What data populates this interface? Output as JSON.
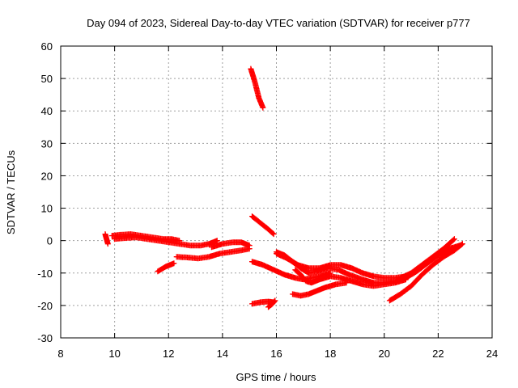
{
  "chart_data": {
    "type": "scatter",
    "title": "Day 094 of 2023, Sidereal Day-to-day VTEC variation (SDTVAR) for receiver p777",
    "xlabel": "GPS time / hours",
    "ylabel": "SDTVAR / TECUs",
    "xlim": [
      8,
      24
    ],
    "ylim": [
      -30,
      60
    ],
    "xticks": [
      8,
      10,
      12,
      14,
      16,
      18,
      20,
      22,
      24
    ],
    "yticks": [
      -30,
      -20,
      -10,
      0,
      10,
      20,
      30,
      40,
      50,
      60
    ],
    "grid": true,
    "legend": "none",
    "marker": "plus",
    "color": "#ff0000",
    "tracks": [
      [
        [
          9.65,
          2.0
        ],
        [
          9.7,
          0.5
        ],
        [
          9.75,
          -1.0
        ]
      ],
      [
        [
          9.9,
          1.5
        ],
        [
          10.2,
          1.8
        ],
        [
          10.6,
          2.0
        ],
        [
          11.0,
          1.5
        ],
        [
          11.4,
          1.0
        ],
        [
          11.8,
          0.5
        ],
        [
          12.1,
          0.5
        ],
        [
          12.4,
          0.0
        ]
      ],
      [
        [
          10.0,
          0.5
        ],
        [
          10.4,
          0.8
        ],
        [
          10.8,
          1.0
        ],
        [
          11.2,
          0.5
        ],
        [
          11.6,
          0.0
        ],
        [
          12.0,
          -0.5
        ],
        [
          12.4,
          -1.0
        ],
        [
          12.8,
          -1.5
        ],
        [
          13.2,
          -1.5
        ],
        [
          13.5,
          -1.0
        ],
        [
          13.8,
          0.0
        ]
      ],
      [
        [
          11.6,
          -9.5
        ],
        [
          11.9,
          -8.0
        ],
        [
          12.2,
          -7.0
        ]
      ],
      [
        [
          12.3,
          -5.0
        ],
        [
          12.7,
          -5.2
        ],
        [
          13.1,
          -5.5
        ],
        [
          13.5,
          -5.0
        ],
        [
          13.9,
          -4.0
        ],
        [
          14.3,
          -3.5
        ],
        [
          14.7,
          -3.0
        ],
        [
          15.0,
          -2.5
        ]
      ],
      [
        [
          13.6,
          -2.0
        ],
        [
          14.0,
          -1.0
        ],
        [
          14.4,
          -0.5
        ],
        [
          14.7,
          -0.5
        ],
        [
          15.0,
          -1.5
        ]
      ],
      [
        [
          15.05,
          53.0
        ],
        [
          15.2,
          49.0
        ],
        [
          15.35,
          44.0
        ],
        [
          15.5,
          41.0
        ]
      ],
      [
        [
          15.1,
          7.5
        ],
        [
          15.4,
          5.5
        ],
        [
          15.7,
          3.5
        ],
        [
          15.9,
          2.0
        ]
      ],
      [
        [
          15.1,
          -19.5
        ],
        [
          15.4,
          -19.0
        ],
        [
          15.7,
          -18.8
        ],
        [
          15.9,
          -19.0
        ]
      ],
      [
        [
          15.7,
          -20.5
        ],
        [
          15.85,
          -19.5
        ],
        [
          15.95,
          -18.5
        ]
      ],
      [
        [
          15.1,
          -6.5
        ],
        [
          15.5,
          -7.5
        ],
        [
          15.9,
          -9.0
        ],
        [
          16.3,
          -10.5
        ],
        [
          16.7,
          -11.5
        ],
        [
          17.0,
          -12.0
        ],
        [
          17.3,
          -11.5
        ],
        [
          17.6,
          -11.0
        ],
        [
          18.0,
          -10.0
        ]
      ],
      [
        [
          16.0,
          -4.0
        ],
        [
          16.4,
          -5.5
        ],
        [
          16.8,
          -7.5
        ],
        [
          17.2,
          -8.5
        ],
        [
          17.6,
          -8.5
        ],
        [
          18.0,
          -7.5
        ],
        [
          18.4,
          -7.5
        ],
        [
          18.8,
          -8.5
        ],
        [
          19.2,
          -10.0
        ],
        [
          19.6,
          -11.0
        ],
        [
          20.0,
          -11.5
        ],
        [
          20.4,
          -11.5
        ],
        [
          20.8,
          -11.0
        ]
      ],
      [
        [
          16.0,
          -3.5
        ],
        [
          16.3,
          -4.5
        ],
        [
          16.6,
          -6.5
        ],
        [
          16.9,
          -8.5
        ],
        [
          17.2,
          -10.0
        ],
        [
          17.5,
          -9.5
        ],
        [
          17.9,
          -8.5
        ],
        [
          18.3,
          -9.0
        ],
        [
          18.7,
          -10.5
        ],
        [
          19.2,
          -12.0
        ],
        [
          19.6,
          -13.0
        ],
        [
          20.0,
          -13.0
        ],
        [
          20.4,
          -12.5
        ]
      ],
      [
        [
          16.7,
          -9.0
        ],
        [
          16.9,
          -10.5
        ],
        [
          17.1,
          -12.5
        ],
        [
          17.3,
          -13.0
        ],
        [
          17.6,
          -12.0
        ],
        [
          18.0,
          -11.0
        ],
        [
          18.4,
          -11.5
        ],
        [
          18.8,
          -12.5
        ],
        [
          19.2,
          -13.5
        ],
        [
          19.6,
          -14.0
        ],
        [
          20.0,
          -13.5
        ],
        [
          20.4,
          -13.0
        ],
        [
          20.8,
          -12.0
        ]
      ],
      [
        [
          16.6,
          -16.5
        ],
        [
          16.9,
          -17.0
        ],
        [
          17.2,
          -16.5
        ],
        [
          17.5,
          -15.5
        ],
        [
          17.8,
          -14.5
        ],
        [
          18.2,
          -13.5
        ],
        [
          18.6,
          -13.0
        ]
      ],
      [
        [
          20.5,
          -12.0
        ],
        [
          21.0,
          -10.0
        ],
        [
          21.4,
          -7.5
        ],
        [
          21.8,
          -5.0
        ],
        [
          22.2,
          -2.5
        ],
        [
          22.6,
          0.5
        ]
      ],
      [
        [
          20.2,
          -18.5
        ],
        [
          20.6,
          -16.5
        ],
        [
          21.0,
          -14.0
        ],
        [
          21.4,
          -10.5
        ],
        [
          21.8,
          -7.5
        ],
        [
          22.2,
          -5.0
        ],
        [
          22.6,
          -3.0
        ],
        [
          22.9,
          -1.0
        ]
      ],
      [
        [
          20.8,
          -11.5
        ],
        [
          21.2,
          -9.5
        ],
        [
          21.6,
          -7.0
        ],
        [
          22.0,
          -4.5
        ],
        [
          22.4,
          -2.5
        ],
        [
          22.8,
          -1.5
        ]
      ]
    ]
  }
}
